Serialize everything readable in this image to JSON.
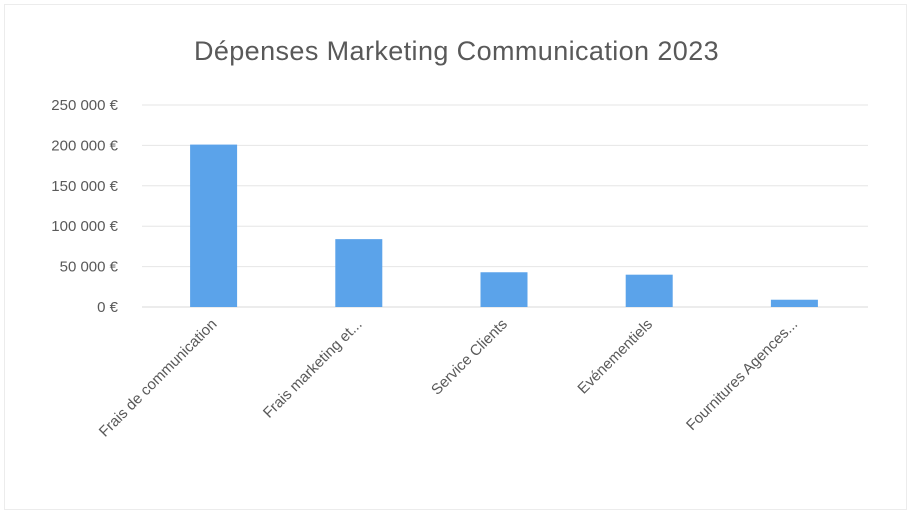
{
  "chart_data": {
    "type": "bar",
    "title": "Dépenses Marketing Communication 2023",
    "xlabel": "",
    "ylabel": "",
    "ylim": [
      0,
      250000
    ],
    "yticks": [
      0,
      50000,
      100000,
      150000,
      200000,
      250000
    ],
    "ytick_labels": [
      "0 €",
      "50 000 €",
      "100 000 €",
      "150 000 €",
      "200 000 €",
      "250 000 €"
    ],
    "categories": [
      "Frais de communication",
      "Frais marketing et...",
      "Service Clients",
      "Evénementiels",
      "Fournitures Agences..."
    ],
    "values": [
      201000,
      84000,
      43000,
      40000,
      9000
    ],
    "grid": true,
    "legend": "none",
    "colors": {
      "bar": "#5ba3ea",
      "grid": "#e6e6e6",
      "text": "#595959"
    }
  }
}
